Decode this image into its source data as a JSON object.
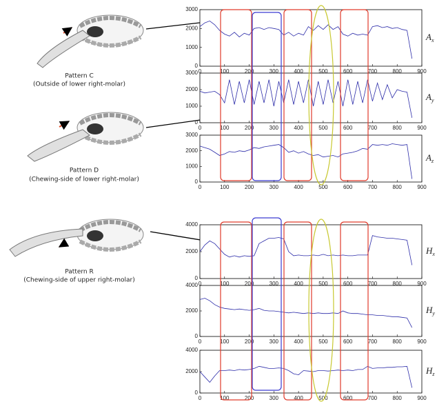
{
  "panels": [
    {
      "label": "Pattern C",
      "caption": "(Outside of lower right-molar)"
    },
    {
      "label": "Pattern D",
      "caption": "(Chewing-side of lower right-molar)"
    },
    {
      "label": "Pattern R",
      "caption": "(Chewing-side of upper right-molar)"
    }
  ],
  "chart_data": [
    {
      "type": "line",
      "ylabel": "A",
      "ylabel_subscript": "x",
      "color": "#2a2aa8",
      "x": [
        0,
        20,
        40,
        60,
        80,
        100,
        120,
        140,
        160,
        180,
        200,
        220,
        240,
        260,
        280,
        300,
        320,
        340,
        360,
        380,
        400,
        420,
        440,
        460,
        480,
        500,
        520,
        540,
        560,
        580,
        600,
        620,
        640,
        660,
        680,
        700,
        720,
        740,
        760,
        780,
        800,
        820,
        840,
        860
      ],
      "values": [
        2100,
        2300,
        2400,
        2200,
        1900,
        1700,
        1600,
        1800,
        1550,
        1750,
        1650,
        2000,
        2050,
        1950,
        2050,
        2000,
        1950,
        1650,
        1800,
        1600,
        1750,
        1650,
        2100,
        1900,
        2150,
        1950,
        2200,
        1950,
        2100,
        1700,
        1600,
        1750,
        1650,
        1700,
        1650,
        2100,
        2150,
        2050,
        2100,
        2000,
        2050,
        1950,
        1900,
        400
      ],
      "xlim": [
        0,
        900
      ],
      "ylim": [
        0,
        3000
      ],
      "xticks": [
        0,
        100,
        200,
        300,
        400,
        500,
        600,
        700,
        800,
        900
      ],
      "yticks": [
        0,
        1000,
        2000,
        3000
      ]
    },
    {
      "type": "line",
      "ylabel": "A",
      "ylabel_subscript": "y",
      "color": "#2a2aa8",
      "x": [
        0,
        20,
        40,
        60,
        80,
        100,
        120,
        140,
        160,
        180,
        200,
        220,
        240,
        260,
        280,
        300,
        320,
        340,
        360,
        380,
        400,
        420,
        440,
        460,
        480,
        500,
        520,
        540,
        560,
        580,
        600,
        620,
        640,
        660,
        680,
        700,
        720,
        740,
        760,
        780,
        800,
        820,
        840,
        860
      ],
      "values": [
        1900,
        1800,
        1850,
        1900,
        1700,
        1200,
        2600,
        1100,
        2500,
        1200,
        2600,
        1100,
        2500,
        1200,
        2600,
        1000,
        2500,
        1200,
        2600,
        1100,
        2500,
        1200,
        2600,
        1000,
        2500,
        1100,
        2600,
        1200,
        2500,
        1000,
        2600,
        1100,
        2500,
        1200,
        2600,
        1300,
        2400,
        1400,
        2300,
        1500,
        2000,
        1900,
        1850,
        300
      ],
      "xlim": [
        0,
        900
      ],
      "ylim": [
        0,
        3000
      ],
      "xticks": [
        0,
        100,
        200,
        300,
        400,
        500,
        600,
        700,
        800,
        900
      ],
      "yticks": [
        0,
        1000,
        2000,
        3000
      ]
    },
    {
      "type": "line",
      "ylabel": "A",
      "ylabel_subscript": "z",
      "color": "#2a2aa8",
      "x": [
        0,
        20,
        40,
        60,
        80,
        100,
        120,
        140,
        160,
        180,
        200,
        220,
        240,
        260,
        280,
        300,
        320,
        340,
        360,
        380,
        400,
        420,
        440,
        460,
        480,
        500,
        520,
        540,
        560,
        580,
        600,
        620,
        640,
        660,
        680,
        700,
        720,
        740,
        760,
        780,
        800,
        820,
        840,
        860
      ],
      "values": [
        2300,
        2200,
        2100,
        1900,
        1700,
        1800,
        1950,
        1900,
        2000,
        1950,
        2050,
        2200,
        2150,
        2250,
        2300,
        2350,
        2400,
        2200,
        1900,
        2000,
        1850,
        1950,
        1800,
        1700,
        1750,
        1600,
        1650,
        1700,
        1600,
        1800,
        1850,
        1900,
        2000,
        2150,
        2100,
        2400,
        2350,
        2400,
        2350,
        2450,
        2400,
        2350,
        2400,
        200
      ],
      "xlim": [
        0,
        900
      ],
      "ylim": [
        0,
        3000
      ],
      "xticks": [
        0,
        100,
        200,
        300,
        400,
        500,
        600,
        700,
        800,
        900
      ],
      "yticks": [
        0,
        1000,
        2000,
        3000
      ]
    },
    {
      "type": "line",
      "ylabel": "H",
      "ylabel_subscript": "x",
      "color": "#2a2aa8",
      "x": [
        0,
        20,
        40,
        60,
        80,
        100,
        120,
        140,
        160,
        180,
        200,
        220,
        240,
        260,
        280,
        300,
        320,
        340,
        360,
        380,
        400,
        420,
        440,
        460,
        480,
        500,
        520,
        540,
        560,
        580,
        600,
        620,
        640,
        660,
        680,
        700,
        720,
        740,
        760,
        780,
        800,
        820,
        840,
        860
      ],
      "values": [
        2000,
        2500,
        2800,
        2600,
        2200,
        1800,
        1600,
        1700,
        1600,
        1700,
        1650,
        1700,
        2600,
        2800,
        3000,
        3000,
        3050,
        2950,
        2000,
        1700,
        1750,
        1700,
        1700,
        1750,
        1700,
        1800,
        1700,
        1750,
        1700,
        1750,
        1700,
        1700,
        1750,
        1750,
        1750,
        3200,
        3100,
        3050,
        3000,
        3000,
        2950,
        2900,
        2850,
        1000
      ],
      "xlim": [
        0,
        900
      ],
      "ylim": [
        0,
        4000
      ],
      "xticks": [
        0,
        100,
        200,
        300,
        400,
        500,
        600,
        700,
        800,
        900
      ],
      "yticks": [
        0,
        2000,
        4000
      ]
    },
    {
      "type": "line",
      "ylabel": "H",
      "ylabel_subscript": "y",
      "color": "#2a2aa8",
      "x": [
        0,
        20,
        40,
        60,
        80,
        100,
        120,
        140,
        160,
        180,
        200,
        220,
        240,
        260,
        280,
        300,
        320,
        340,
        360,
        380,
        400,
        420,
        440,
        460,
        480,
        500,
        520,
        540,
        560,
        580,
        600,
        620,
        640,
        660,
        680,
        700,
        720,
        740,
        760,
        780,
        800,
        820,
        840,
        860
      ],
      "values": [
        2900,
        3000,
        2800,
        2500,
        2300,
        2200,
        2150,
        2100,
        2150,
        2100,
        2050,
        2100,
        2200,
        2050,
        2000,
        2000,
        1950,
        1900,
        1850,
        1900,
        1850,
        1800,
        1850,
        1800,
        1850,
        1800,
        1800,
        1850,
        1800,
        2000,
        1850,
        1800,
        1800,
        1750,
        1700,
        1700,
        1650,
        1650,
        1600,
        1550,
        1550,
        1500,
        1450,
        700
      ],
      "xlim": [
        0,
        900
      ],
      "ylim": [
        0,
        4000
      ],
      "xticks": [
        0,
        100,
        200,
        300,
        400,
        500,
        600,
        700,
        800,
        900
      ],
      "yticks": [
        0,
        2000,
        4000
      ]
    },
    {
      "type": "line",
      "ylabel": "H",
      "ylabel_subscript": "z",
      "color": "#2a2aa8",
      "x": [
        0,
        20,
        40,
        60,
        80,
        100,
        120,
        140,
        160,
        180,
        200,
        220,
        240,
        260,
        280,
        300,
        320,
        340,
        360,
        380,
        400,
        420,
        440,
        460,
        480,
        500,
        520,
        540,
        560,
        580,
        600,
        620,
        640,
        660,
        680,
        700,
        720,
        740,
        760,
        780,
        800,
        820,
        840,
        860
      ],
      "values": [
        2000,
        1500,
        1000,
        1600,
        2100,
        2100,
        2150,
        2100,
        2200,
        2150,
        2200,
        2300,
        2500,
        2400,
        2300,
        2300,
        2350,
        2300,
        2100,
        1800,
        1700,
        2100,
        2050,
        2000,
        2100,
        2100,
        2050,
        2100,
        2150,
        2100,
        2150,
        2100,
        2200,
        2200,
        2500,
        2300,
        2350,
        2350,
        2400,
        2400,
        2450,
        2450,
        2500,
        500
      ],
      "xlim": [
        0,
        900
      ],
      "ylim": [
        0,
        4000
      ],
      "xticks": [
        0,
        100,
        200,
        300,
        400,
        500,
        600,
        700,
        800,
        900
      ],
      "yticks": [
        0,
        2000,
        4000
      ]
    }
  ]
}
